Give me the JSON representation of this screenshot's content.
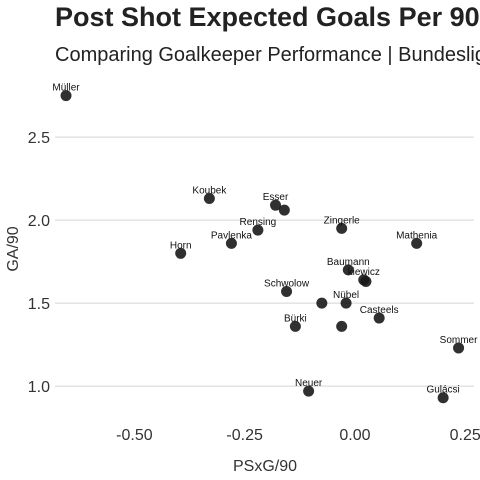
{
  "chart_data": {
    "type": "scatter",
    "title": "Post Shot Expected Goals Per 90",
    "subtitle": "Comparing Goalkeeper Performance | Bundesliga",
    "xlabel": "PSxG/90",
    "ylabel": "GA/90",
    "xlim": [
      -0.68,
      0.27
    ],
    "ylim": [
      0.82,
      2.82
    ],
    "xticks": [
      -0.5,
      -0.25,
      0.0,
      0.25
    ],
    "xtick_labels": [
      "-0.50",
      "-0.25",
      "0.00",
      "0.25"
    ],
    "yticks": [
      1.0,
      1.5,
      2.0,
      2.5
    ],
    "ytick_labels": [
      "1.0",
      "1.5",
      "2.0",
      "2.5"
    ],
    "grid": "horizontal",
    "point_color": "#1a1a1a",
    "points": [
      {
        "label": "Müller",
        "x": -0.655,
        "y": 2.75
      },
      {
        "label": "Koubek",
        "x": -0.33,
        "y": 2.13
      },
      {
        "label": "Esser",
        "x": -0.18,
        "y": 2.09
      },
      {
        "label": "",
        "x": -0.16,
        "y": 2.06
      },
      {
        "label": "Rensing",
        "x": -0.22,
        "y": 1.94
      },
      {
        "label": "Pavlenka",
        "x": -0.28,
        "y": 1.86
      },
      {
        "label": "Zingerle",
        "x": -0.03,
        "y": 1.95
      },
      {
        "label": "Mathenia",
        "x": 0.14,
        "y": 1.86
      },
      {
        "label": "Horn",
        "x": -0.395,
        "y": 1.8
      },
      {
        "label": "Baumann",
        "x": -0.015,
        "y": 1.7
      },
      {
        "label": "kiewicz",
        "x": 0.02,
        "y": 1.64
      },
      {
        "label": "",
        "x": 0.025,
        "y": 1.63
      },
      {
        "label": "Schwolow",
        "x": -0.155,
        "y": 1.57
      },
      {
        "label": "",
        "x": -0.075,
        "y": 1.5
      },
      {
        "label": "Nübel",
        "x": -0.02,
        "y": 1.5
      },
      {
        "label": "Casteels",
        "x": 0.055,
        "y": 1.41
      },
      {
        "label": "Bürki",
        "x": -0.135,
        "y": 1.36
      },
      {
        "label": "",
        "x": -0.03,
        "y": 1.36
      },
      {
        "label": "Sommer",
        "x": 0.235,
        "y": 1.23
      },
      {
        "label": "Neuer",
        "x": -0.105,
        "y": 0.97
      },
      {
        "label": "Gulácsi",
        "x": 0.2,
        "y": 0.93
      }
    ]
  }
}
